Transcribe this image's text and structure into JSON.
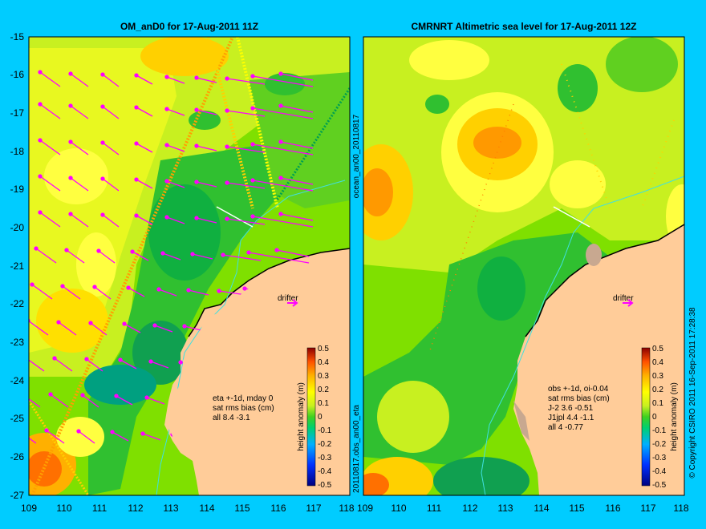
{
  "panels": [
    {
      "title": "OM_anD0 for 17-Aug-2011 11Z",
      "x_ticks": [
        "109",
        "110",
        "111",
        "112",
        "113",
        "114",
        "115",
        "116",
        "117",
        "118"
      ],
      "y_ticks": [
        "-15",
        "-16",
        "-17",
        "-18",
        "-19",
        "-20",
        "-21",
        "-22",
        "-23",
        "-24",
        "-25",
        "-26",
        "-27"
      ],
      "drifter_label": "drifter",
      "stats": [
        "eta +-1d, mday 0",
        "sat rms bias (cm)",
        "all 8.4 -3.1"
      ],
      "side_label": "ocean_an00_20110817",
      "side_label_bottom": "20110817.obs_an00_eta"
    },
    {
      "title": "CMRNRT Altimetric sea level  for 17-Aug-2011 12Z",
      "x_ticks": [
        "109",
        "110",
        "111",
        "112",
        "113",
        "114",
        "115",
        "116",
        "117",
        "118"
      ],
      "drifter_label": "drifter",
      "stats": [
        "obs +-1d, oi-0.04",
        "sat rms bias (cm)",
        "J-2   3.6 -0.51",
        "J1jpl 4.4 -1.1",
        "all 4 -0.77"
      ],
      "side_label": "© Copyright CSIRO 2011   16-Sep-2011 17:28:38"
    }
  ],
  "colorbar": {
    "label": "height anomaly (m)",
    "ticks": [
      "0.5",
      "0.4",
      "0.3",
      "0.2",
      "0.1",
      "0",
      "-0.1",
      "-0.2",
      "-0.3",
      "-0.4",
      "-0.5"
    ]
  },
  "chart_data": [
    {
      "type": "heatmap",
      "title": "OM_anD0 for 17-Aug-2011 11Z",
      "xlim": [
        109,
        118
      ],
      "ylim": [
        -27,
        -15
      ],
      "color_range": [
        -0.5,
        0.5
      ],
      "colorbar_label": "height anomaly (m)",
      "overlays": [
        "satellite tracks",
        "velocity arrows",
        "drifter"
      ],
      "colors": {
        "background": "#00ccff",
        "land": "#ffcc99",
        "arrows": "#ff00ff"
      }
    },
    {
      "type": "heatmap",
      "title": "CMRNRT Altimetric sea level  for 17-Aug-2011 12Z",
      "xlim": [
        109,
        118
      ],
      "ylim": [
        -27,
        -15
      ],
      "color_range": [
        -0.5,
        0.5
      ],
      "colorbar_label": "height anomaly (m)",
      "overlays": [
        "satellite tracks",
        "drifter"
      ],
      "colors": {
        "background": "#00ccff",
        "land": "#ffcc99"
      }
    }
  ]
}
